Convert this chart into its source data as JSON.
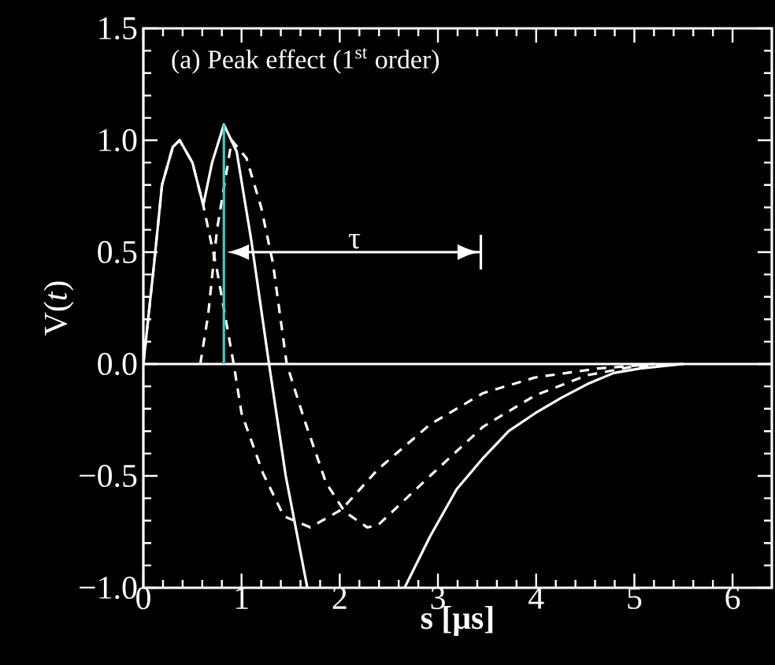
{
  "chart_data": {
    "type": "line",
    "title": "(a) Peak effect (1$^{st}$ order)",
    "xlabel": "s [μs]",
    "ylabel": "V(*t*)",
    "xlim": [
      0,
      6.4
    ],
    "ylim": [
      -1.0,
      1.5
    ],
    "xticks": [
      0,
      1,
      2,
      3,
      4,
      5,
      6
    ],
    "yticks": [
      {
        "value": -1.0,
        "label": "−1.0"
      },
      {
        "value": -0.5,
        "label": "−0.5"
      },
      {
        "value": 0.0,
        "label": "0.0"
      },
      {
        "value": 0.5,
        "label": "0.5"
      },
      {
        "value": 1.0,
        "label": "1.0"
      },
      {
        "value": 1.5,
        "label": "1.5"
      }
    ],
    "series": [
      {
        "color": "#ffffff",
        "x": [
          0,
          0.11,
          0.19,
          0.3,
          0.37,
          0.5,
          0.61,
          0.7,
          0.82,
          0.95,
          1.1,
          1.28,
          1.45,
          1.67,
          2.2,
          2.66,
          2.92,
          3.19,
          3.46,
          3.72,
          3.99,
          4.26,
          4.52,
          4.79,
          5.06,
          5.5
        ],
        "values": [
          0,
          0.45,
          0.8,
          0.97,
          1.0,
          0.9,
          0.71,
          0.9,
          1.07,
          0.95,
          0.55,
          0,
          -0.5,
          -1.0,
          null,
          -1.0,
          -0.77,
          -0.56,
          -0.42,
          -0.3,
          -0.22,
          -0.15,
          -0.09,
          -0.04,
          -0.02,
          0
        ]
      },
      {
        "color": "#ffffff",
        "line_style": "dashed",
        "x": [
          0,
          0.11,
          0.19,
          0.3,
          0.37,
          0.5,
          0.61,
          0.75,
          0.92,
          1.0,
          1.22,
          1.43,
          1.7,
          2.02,
          2.39,
          2.92,
          3.46,
          3.99,
          4.63,
          5.2
        ],
        "values": [
          0,
          0.45,
          0.8,
          0.97,
          1.0,
          0.9,
          0.71,
          0.42,
          0,
          -0.22,
          -0.49,
          -0.68,
          -0.73,
          -0.65,
          -0.47,
          -0.27,
          -0.13,
          -0.06,
          -0.02,
          0
        ]
      },
      {
        "color": "#ffffff",
        "line_style": "dashed",
        "x": [
          0.58,
          0.66,
          0.75,
          0.9,
          1.05,
          1.2,
          1.32,
          1.46,
          1.64,
          1.86,
          2.05,
          2.28,
          2.39,
          2.92,
          3.46,
          3.99,
          4.52,
          5.0,
          5.5
        ],
        "values": [
          0,
          0.22,
          0.6,
          1.0,
          0.92,
          0.7,
          0.45,
          0,
          -0.25,
          -0.53,
          -0.66,
          -0.73,
          -0.72,
          -0.5,
          -0.28,
          -0.14,
          -0.05,
          -0.01,
          0
        ]
      },
      {
        "color": "#3cc8c8",
        "x": [
          0.82,
          0.82
        ],
        "values": [
          0,
          1.07
        ]
      }
    ],
    "ref_lines": [
      {
        "axis": "y",
        "value": 0,
        "color": "#ffffff"
      }
    ],
    "annotations": [
      "τ"
    ]
  }
}
